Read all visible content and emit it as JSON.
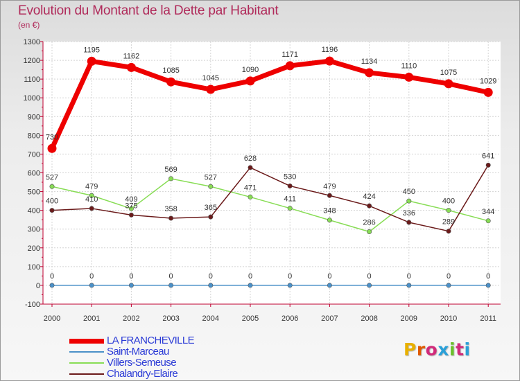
{
  "chart_data": {
    "type": "line",
    "title": "Evolution du Montant de la Dette par Habitant",
    "subtitle": "(en €)",
    "categories": [
      "2000",
      "2001",
      "2002",
      "2003",
      "2004",
      "2005",
      "2006",
      "2007",
      "2008",
      "2009",
      "2010",
      "2011"
    ],
    "ylim": [
      -100,
      1300
    ],
    "yticks": [
      -100,
      0,
      100,
      200,
      300,
      400,
      500,
      600,
      700,
      800,
      900,
      1000,
      1100,
      1200,
      1300
    ],
    "grid": true,
    "legend_position": "bottom-left",
    "series": [
      {
        "name": "LA FRANCHEVILLE",
        "color": "#ee0000",
        "values": [
          730,
          1195,
          1162,
          1085,
          1045,
          1090,
          1171,
          1196,
          1134,
          1110,
          1075,
          1029
        ]
      },
      {
        "name": "Saint-Marceau",
        "color": "#4a90c8",
        "values": [
          0,
          0,
          0,
          0,
          0,
          0,
          0,
          0,
          0,
          0,
          0,
          0
        ]
      },
      {
        "name": "Villers-Semeuse",
        "color": "#88dd55",
        "values": [
          527,
          479,
          409,
          569,
          527,
          471,
          411,
          348,
          286,
          450,
          400,
          344
        ]
      },
      {
        "name": "Chalandry-Elaire",
        "color": "#6b1a1a",
        "values": [
          400,
          410,
          375,
          358,
          365,
          628,
          530,
          479,
          424,
          336,
          289,
          641
        ]
      }
    ]
  },
  "logo": {
    "text": "Proxiti",
    "colors": [
      "#e8b000",
      "#e05a00",
      "#d12a7a",
      "#2aa0d8",
      "#6bbf2a",
      "#d12a7a",
      "#2aa0d8"
    ]
  }
}
